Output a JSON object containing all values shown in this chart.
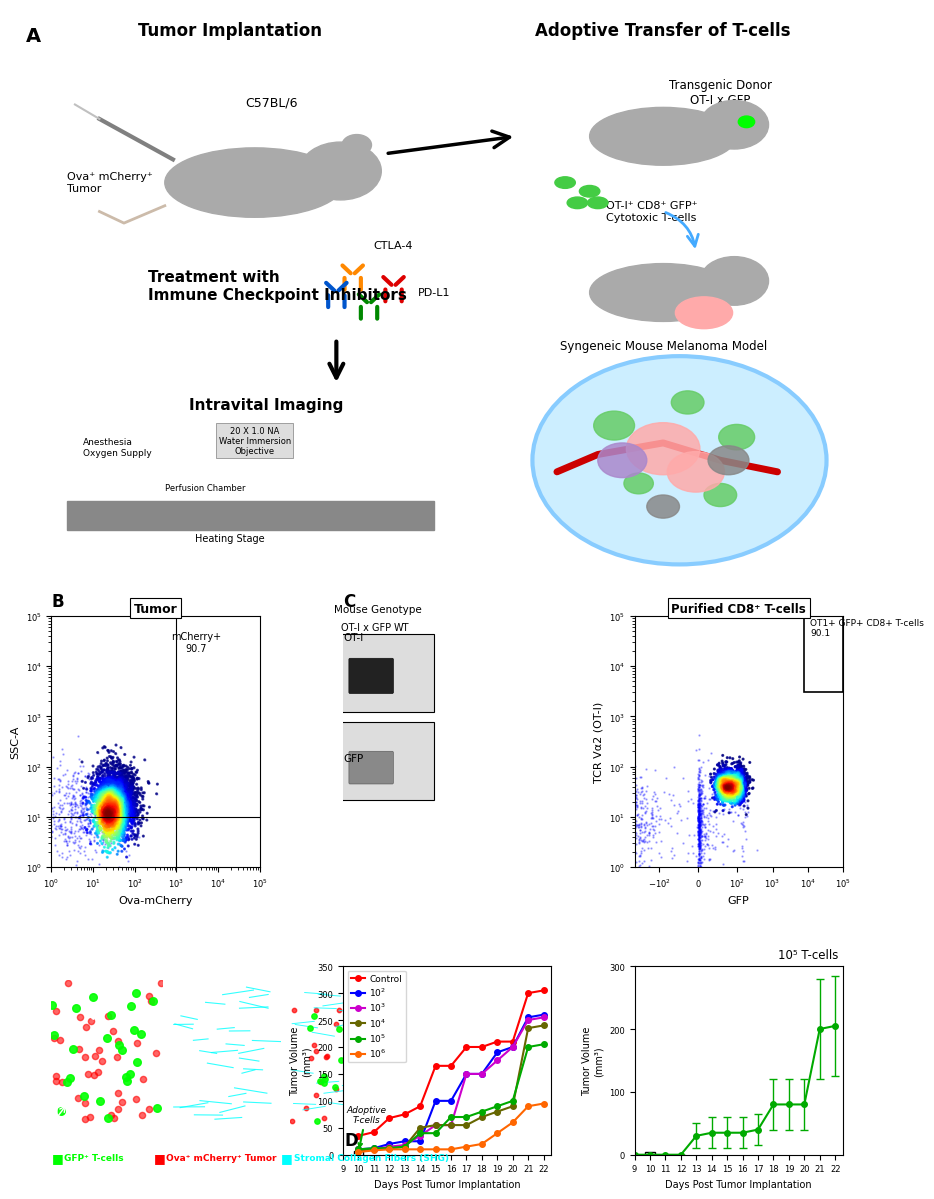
{
  "panel_A_title": "A",
  "panel_B_title": "B",
  "panel_C_title": "C",
  "panel_D_title": "D",
  "text_tumor_implantation": "Tumor Implantation",
  "text_adoptive_transfer": "Adoptive Transfer of T-cells",
  "text_c57bl6": "C57BL/6",
  "text_ova_tumor": "Ova⁺ mCherry⁺\nTumor",
  "text_transgenic": "Transgenic Donor\nOT-I x GFP",
  "text_ot1_cells": "OT-I⁺ CD8⁺ GFP⁺\nCytotoxic T-cells",
  "text_syngeneic": "Syngeneic Mouse Melanoma Model",
  "text_treatment": "Treatment with\nImmune Checkpoint Inhibitors",
  "text_ctla4": "CTLA-4",
  "text_pdl1": "PD-L1",
  "text_intravital": "Intravital Imaging",
  "text_heating_stage": "Heating Stage",
  "text_perfusion": "Perfusion Chamber",
  "text_anesthesia": "Anesthesia\nOxygen Supply",
  "text_objective": "20 X 1.0 NA\nWater Immersion\nObjective",
  "flow_B_title": "Tumor",
  "flow_B_xlabel": "Ova-mCherry",
  "flow_B_ylabel": "SSC-A",
  "flow_B_annotation": "mCherry+\n90.7",
  "flow_C_right_title": "Purified CD8⁺ T-cells",
  "flow_C_right_xlabel": "GFP",
  "flow_C_right_ylabel": "TCR Vα2 (OT-I)",
  "flow_C_right_annotation": "OT1+ GFP+ CD8+ T-cells\n90.1",
  "blot_C_title": "Mouse Genotype",
  "blot_C_col1": "OT-I x GFP",
  "blot_C_col2": "WT",
  "blot_C_row1": "OT-I",
  "blot_C_row2": "GFP",
  "legend_gfp": "GFP⁺ T-cells",
  "legend_ova": "Ova⁺ mCherry⁺ Tumor",
  "legend_collagen": "Stromal Collagen Fibers (SHG)",
  "D_xlabel": "Days Post Tumor Implantation",
  "D_ylabel": "Tumor Volume\n(mm³)",
  "D_ylabel2": "Tumor Volume\n(mm³)",
  "D_xlabel2": "Days Post Tumor Implantation",
  "D_title2": "10⁵ T-cells",
  "D_arrow_label": "Adoptive\nT-cells",
  "D_series": {
    "Control": {
      "color": "#FF0000",
      "days": [
        10,
        11,
        12,
        13,
        14,
        15,
        16,
        17,
        18,
        19,
        20,
        21,
        22
      ],
      "values": [
        35,
        42,
        68,
        75,
        90,
        165,
        165,
        200,
        200,
        210,
        210,
        300,
        305
      ]
    },
    "10^2": {
      "color": "#0000FF",
      "days": [
        10,
        11,
        12,
        13,
        14,
        15,
        16,
        17,
        18,
        19,
        20,
        21,
        22
      ],
      "values": [
        10,
        12,
        20,
        25,
        25,
        100,
        100,
        150,
        150,
        190,
        200,
        255,
        260
      ]
    },
    "10^3": {
      "color": "#CC00CC",
      "days": [
        10,
        11,
        12,
        13,
        14,
        15,
        16,
        17,
        18,
        19,
        20,
        21,
        22
      ],
      "values": [
        10,
        10,
        15,
        18,
        35,
        55,
        55,
        150,
        150,
        175,
        200,
        250,
        255
      ]
    },
    "10^4": {
      "color": "#666600",
      "days": [
        10,
        11,
        12,
        13,
        14,
        15,
        16,
        17,
        18,
        19,
        20,
        21,
        22
      ],
      "values": [
        8,
        10,
        12,
        15,
        50,
        55,
        55,
        55,
        70,
        80,
        90,
        235,
        240
      ]
    },
    "10^5": {
      "color": "#00AA00",
      "days": [
        10,
        11,
        12,
        13,
        14,
        15,
        16,
        17,
        18,
        19,
        20,
        21,
        22
      ],
      "values": [
        10,
        12,
        12,
        15,
        40,
        40,
        70,
        70,
        80,
        90,
        100,
        200,
        205
      ],
      "highlighted": true
    },
    "10^6": {
      "color": "#FF6600",
      "days": [
        10,
        11,
        12,
        13,
        14,
        15,
        16,
        17,
        18,
        19,
        20,
        21,
        22
      ],
      "values": [
        5,
        8,
        10,
        10,
        10,
        10,
        10,
        15,
        20,
        40,
        60,
        90,
        95
      ]
    }
  },
  "D2_days": [
    9,
    10,
    11,
    12,
    13,
    14,
    15,
    16,
    17,
    18,
    19,
    20,
    21,
    22
  ],
  "D2_values": [
    0,
    0,
    0,
    0,
    30,
    35,
    35,
    35,
    40,
    80,
    80,
    80,
    200,
    205
  ],
  "D2_errors": [
    0,
    0,
    0,
    0,
    20,
    25,
    25,
    25,
    25,
    40,
    40,
    40,
    80,
    80
  ],
  "D2_color": "#00AA00",
  "background_color": "#FFFFFF",
  "figure_bg": "#FFFFFF"
}
